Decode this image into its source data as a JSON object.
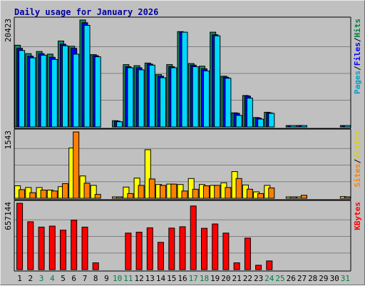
{
  "chart_data": {
    "title": "Daily usage for January 2026",
    "type": "bar",
    "x": [
      "1",
      "2",
      "3",
      "4",
      "5",
      "6",
      "7",
      "8",
      "9",
      "10",
      "11",
      "12",
      "13",
      "14",
      "15",
      "16",
      "17",
      "18",
      "19",
      "20",
      "21",
      "22",
      "23",
      "24",
      "25",
      "26",
      "27",
      "28",
      "29",
      "30",
      "31"
    ],
    "weekend_days": [
      "3",
      "4",
      "10",
      "11",
      "17",
      "18",
      "24",
      "25",
      "31"
    ],
    "panels": [
      {
        "id": "hits",
        "ymax_label": "20423",
        "ymax": 20423,
        "right_labels": [
          {
            "text": "Pages",
            "color": "#00a0c8"
          },
          {
            "text": "/",
            "color": "#000000"
          },
          {
            "text": "Files",
            "color": "#0000ff"
          },
          {
            "text": "/",
            "color": "#000000"
          },
          {
            "text": "Hits",
            "color": "#008040"
          }
        ],
        "series": [
          {
            "name": "Hits",
            "color": "#138a5c",
            "values": [
              15600,
              14000,
              14400,
              13900,
              16400,
              15400,
              20423,
              13800,
              0,
              1200,
              11900,
              11700,
              12200,
              10000,
              11900,
              18200,
              12100,
              11600,
              18100,
              9700,
              2700,
              6000,
              1800,
              2800,
              0,
              250,
              280,
              0,
              0,
              0,
              220
            ]
          },
          {
            "name": "Files",
            "color": "#0000ff",
            "values": [
              15000,
              13500,
              14000,
              13300,
              15800,
              15000,
              19900,
              13600,
              0,
              1100,
              11500,
              11300,
              12000,
              9700,
              11500,
              18100,
              11800,
              11100,
              17600,
              9500,
              2600,
              5900,
              1700,
              2700,
              0,
              240,
              270,
              0,
              0,
              0,
              210
            ]
          },
          {
            "name": "Pages",
            "color": "#00d8ff",
            "values": [
              14600,
              13200,
              13700,
              12900,
              15500,
              13900,
              19400,
              13400,
              0,
              1000,
              11300,
              10900,
              11800,
              9400,
              11300,
              18100,
              11500,
              10700,
              17400,
              9300,
              2200,
              5500,
              1500,
              2600,
              0,
              140,
              150,
              0,
              0,
              0,
              130
            ]
          }
        ]
      },
      {
        "id": "visits",
        "ymax_label": "1543",
        "ymax": 1543,
        "right_labels": [
          {
            "text": "Sites",
            "color": "#ff8000"
          },
          {
            "text": "/",
            "color": "#000000"
          },
          {
            "text": "Visits",
            "color": "#e0d000"
          }
        ],
        "series": [
          {
            "name": "Visits",
            "color": "#ffff00",
            "values": [
              290,
              250,
              250,
              190,
              270,
              1170,
              520,
              300,
              0,
              30,
              260,
              470,
              1130,
              320,
              330,
              320,
              460,
              320,
              300,
              360,
              620,
              310,
              150,
              300,
              0,
              30,
              30,
              0,
              0,
              0,
              40
            ]
          },
          {
            "name": "Sites",
            "color": "#ff8000",
            "values": [
              200,
              130,
              190,
              170,
              340,
              1543,
              350,
              90,
              0,
              20,
              110,
              300,
              450,
              300,
              330,
              170,
              210,
              290,
              300,
              250,
              460,
              210,
              110,
              240,
              0,
              20,
              70,
              0,
              0,
              0,
              20
            ]
          }
        ]
      },
      {
        "id": "kbytes",
        "ymax_label": "657144",
        "ymax": 657144,
        "right_labels": [
          {
            "text": "KBytes",
            "color": "#ff0000"
          }
        ],
        "series": [
          {
            "name": "KBytes",
            "color": "#ff0000",
            "values": [
              657144,
              474000,
              421000,
              431000,
              391000,
              490000,
              421000,
              67000,
              0,
              0,
              362000,
              371000,
              414000,
              270000,
              411000,
              425000,
              630000,
              409000,
              452000,
              362000,
              67000,
              312000,
              43000,
              86000,
              0,
              0,
              0,
              0,
              0,
              0,
              0
            ]
          }
        ]
      }
    ]
  }
}
